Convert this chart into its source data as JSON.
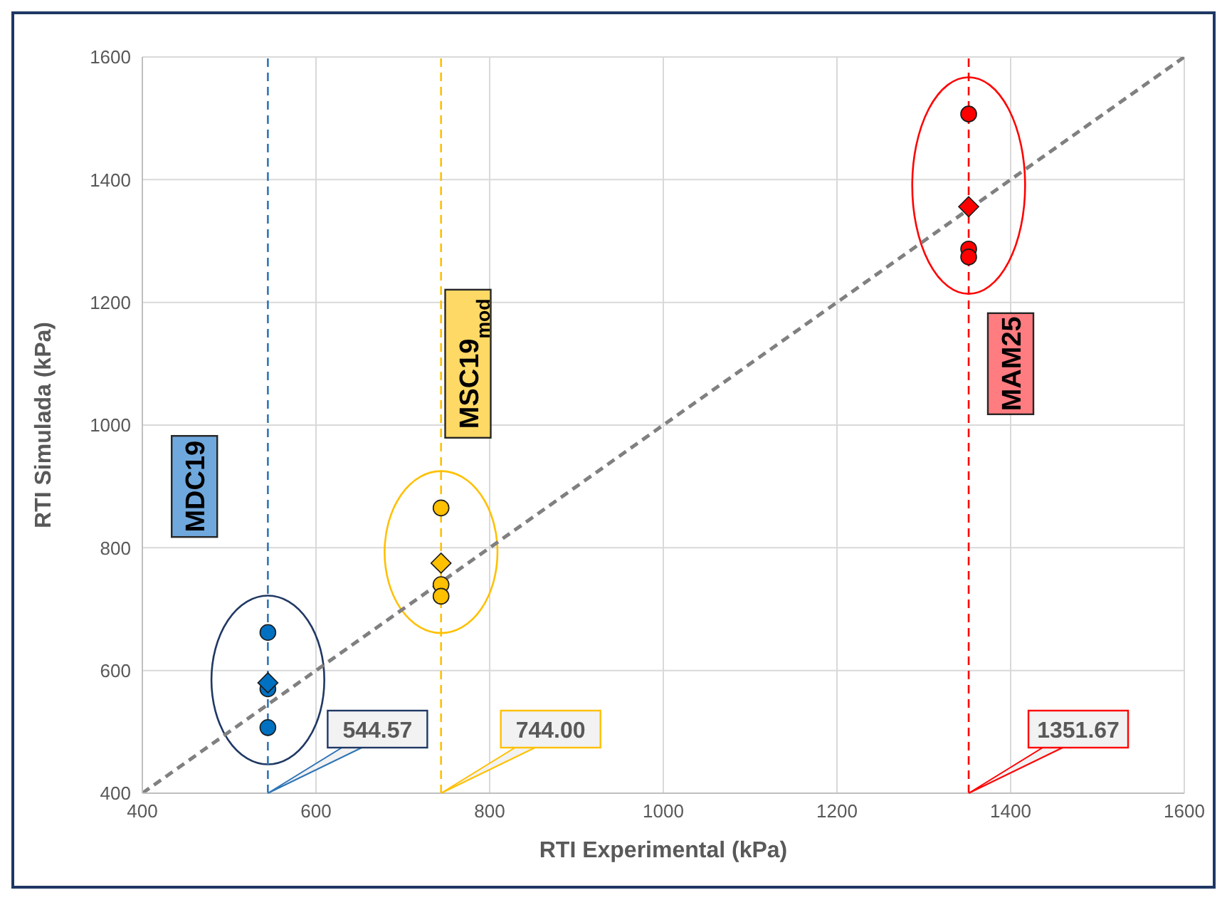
{
  "chart_data": {
    "type": "scatter",
    "xlabel": "RTI Experimental (kPa)",
    "ylabel": "RTI Simulada (kPa)",
    "xlim": [
      400,
      1600
    ],
    "xticks": [
      400,
      600,
      800,
      1000,
      1200,
      1400,
      1600
    ],
    "ylim": [
      400,
      1600
    ],
    "yticks": [
      400,
      600,
      800,
      1000,
      1200,
      1400,
      1600
    ],
    "grid": true,
    "legend": false,
    "series": [
      {
        "type": "line",
        "x": [
          400,
          1600
        ],
        "values": [
          400,
          1600
        ],
        "color": "#808080",
        "line_style": "dashed",
        "marker": "none"
      },
      {
        "x": [
          544.57,
          544.57,
          544.57
        ],
        "values": [
          662,
          570,
          507
        ],
        "color": "#0070c0",
        "marker": "circle"
      },
      {
        "x": [
          544.57
        ],
        "values": [
          580
        ],
        "color": "#0070c0",
        "marker": "diamond"
      },
      {
        "x": [
          744,
          744,
          744
        ],
        "values": [
          865,
          740,
          721
        ],
        "color": "#ffc000",
        "marker": "circle"
      },
      {
        "x": [
          744
        ],
        "values": [
          775
        ],
        "color": "#ffc000",
        "marker": "diamond"
      },
      {
        "x": [
          1351.67,
          1351.67,
          1351.67
        ],
        "values": [
          1507,
          1287,
          1274
        ],
        "color": "#ff0000",
        "marker": "circle"
      },
      {
        "x": [
          1351.67
        ],
        "values": [
          1356
        ],
        "color": "#ff0000",
        "marker": "diamond"
      }
    ],
    "ref_lines": [
      {
        "axis": "x",
        "value": 544.57,
        "label": "544.57",
        "color": "#2e75b6",
        "line_style": "dashed"
      },
      {
        "axis": "x",
        "value": 744,
        "label": "744.00",
        "color": "#ffc000",
        "line_style": "dashed"
      },
      {
        "axis": "x",
        "value": 1351.67,
        "label": "1351.67",
        "color": "#ff0000",
        "line_style": "dashed"
      }
    ],
    "annotations": [
      "MDC19",
      "MSC19$_{mod}$",
      "MAM25"
    ]
  }
}
